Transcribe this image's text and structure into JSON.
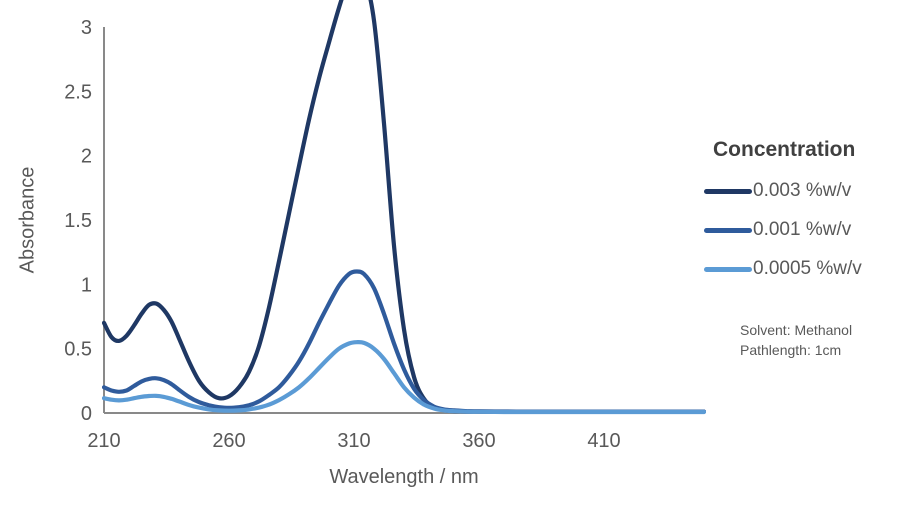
{
  "chart_data": {
    "type": "line",
    "title": "",
    "xlabel": "Wavelength / nm",
    "ylabel": "Absorbance",
    "xlim": [
      210,
      450
    ],
    "ylim": [
      0,
      3
    ],
    "xticks": [
      210,
      260,
      310,
      360,
      410
    ],
    "yticks": [
      0,
      0.5,
      1,
      1.5,
      2,
      2.5,
      3
    ],
    "grid": false,
    "legend": {
      "title": "Concentration",
      "position": "right"
    },
    "annotations": {
      "line1": "Solvent: Methanol",
      "line2": "Pathlength: 1cm"
    },
    "x": [
      210,
      213,
      216,
      219,
      222,
      225,
      228,
      231,
      234,
      237,
      240,
      244,
      248,
      252,
      256,
      260,
      264,
      268,
      272,
      276,
      280,
      284,
      288,
      292,
      296,
      300,
      304,
      308,
      311,
      314,
      318,
      322,
      326,
      330,
      334,
      338,
      342,
      346,
      350,
      355,
      360,
      370,
      380,
      390,
      400,
      410,
      420,
      430,
      440,
      450
    ],
    "series": [
      {
        "name": "0.003 %w/v",
        "color": "#1F3864",
        "values": [
          0.7,
          0.59,
          0.56,
          0.6,
          0.68,
          0.77,
          0.84,
          0.85,
          0.8,
          0.71,
          0.58,
          0.4,
          0.25,
          0.16,
          0.115,
          0.13,
          0.2,
          0.32,
          0.52,
          0.82,
          1.18,
          1.55,
          1.92,
          2.28,
          2.6,
          2.88,
          3.15,
          3.38,
          3.45,
          3.4,
          3.05,
          2.25,
          1.3,
          0.65,
          0.28,
          0.11,
          0.045,
          0.022,
          0.015,
          0.012,
          0.012,
          0.01,
          0.01,
          0.01,
          0.01,
          0.01,
          0.01,
          0.01,
          0.01,
          0.01
        ]
      },
      {
        "name": "0.001 %w/v",
        "color": "#2F5B9C",
        "values": [
          0.2,
          0.175,
          0.165,
          0.175,
          0.21,
          0.245,
          0.265,
          0.27,
          0.255,
          0.225,
          0.18,
          0.125,
          0.085,
          0.06,
          0.045,
          0.04,
          0.045,
          0.06,
          0.09,
          0.14,
          0.2,
          0.29,
          0.4,
          0.54,
          0.7,
          0.85,
          0.99,
          1.08,
          1.1,
          1.08,
          0.97,
          0.77,
          0.54,
          0.34,
          0.19,
          0.1,
          0.05,
          0.028,
          0.02,
          0.015,
          0.013,
          0.012,
          0.011,
          0.011,
          0.011,
          0.011,
          0.011,
          0.011,
          0.011,
          0.011
        ]
      },
      {
        "name": "0.0005 %w/v",
        "color": "#5B9BD5",
        "values": [
          0.115,
          0.103,
          0.098,
          0.103,
          0.115,
          0.126,
          0.132,
          0.133,
          0.125,
          0.11,
          0.09,
          0.062,
          0.042,
          0.028,
          0.02,
          0.018,
          0.02,
          0.028,
          0.042,
          0.065,
          0.1,
          0.145,
          0.2,
          0.27,
          0.35,
          0.43,
          0.5,
          0.54,
          0.55,
          0.545,
          0.5,
          0.42,
          0.31,
          0.2,
          0.12,
          0.065,
          0.035,
          0.02,
          0.014,
          0.01,
          0.009,
          0.008,
          0.008,
          0.008,
          0.008,
          0.008,
          0.008,
          0.008,
          0.008,
          0.008
        ]
      }
    ],
    "style": {
      "axis_color": "#898989",
      "tick_text_color": "#595959",
      "legend_title_color": "#404040",
      "line_width": 4.2
    }
  }
}
